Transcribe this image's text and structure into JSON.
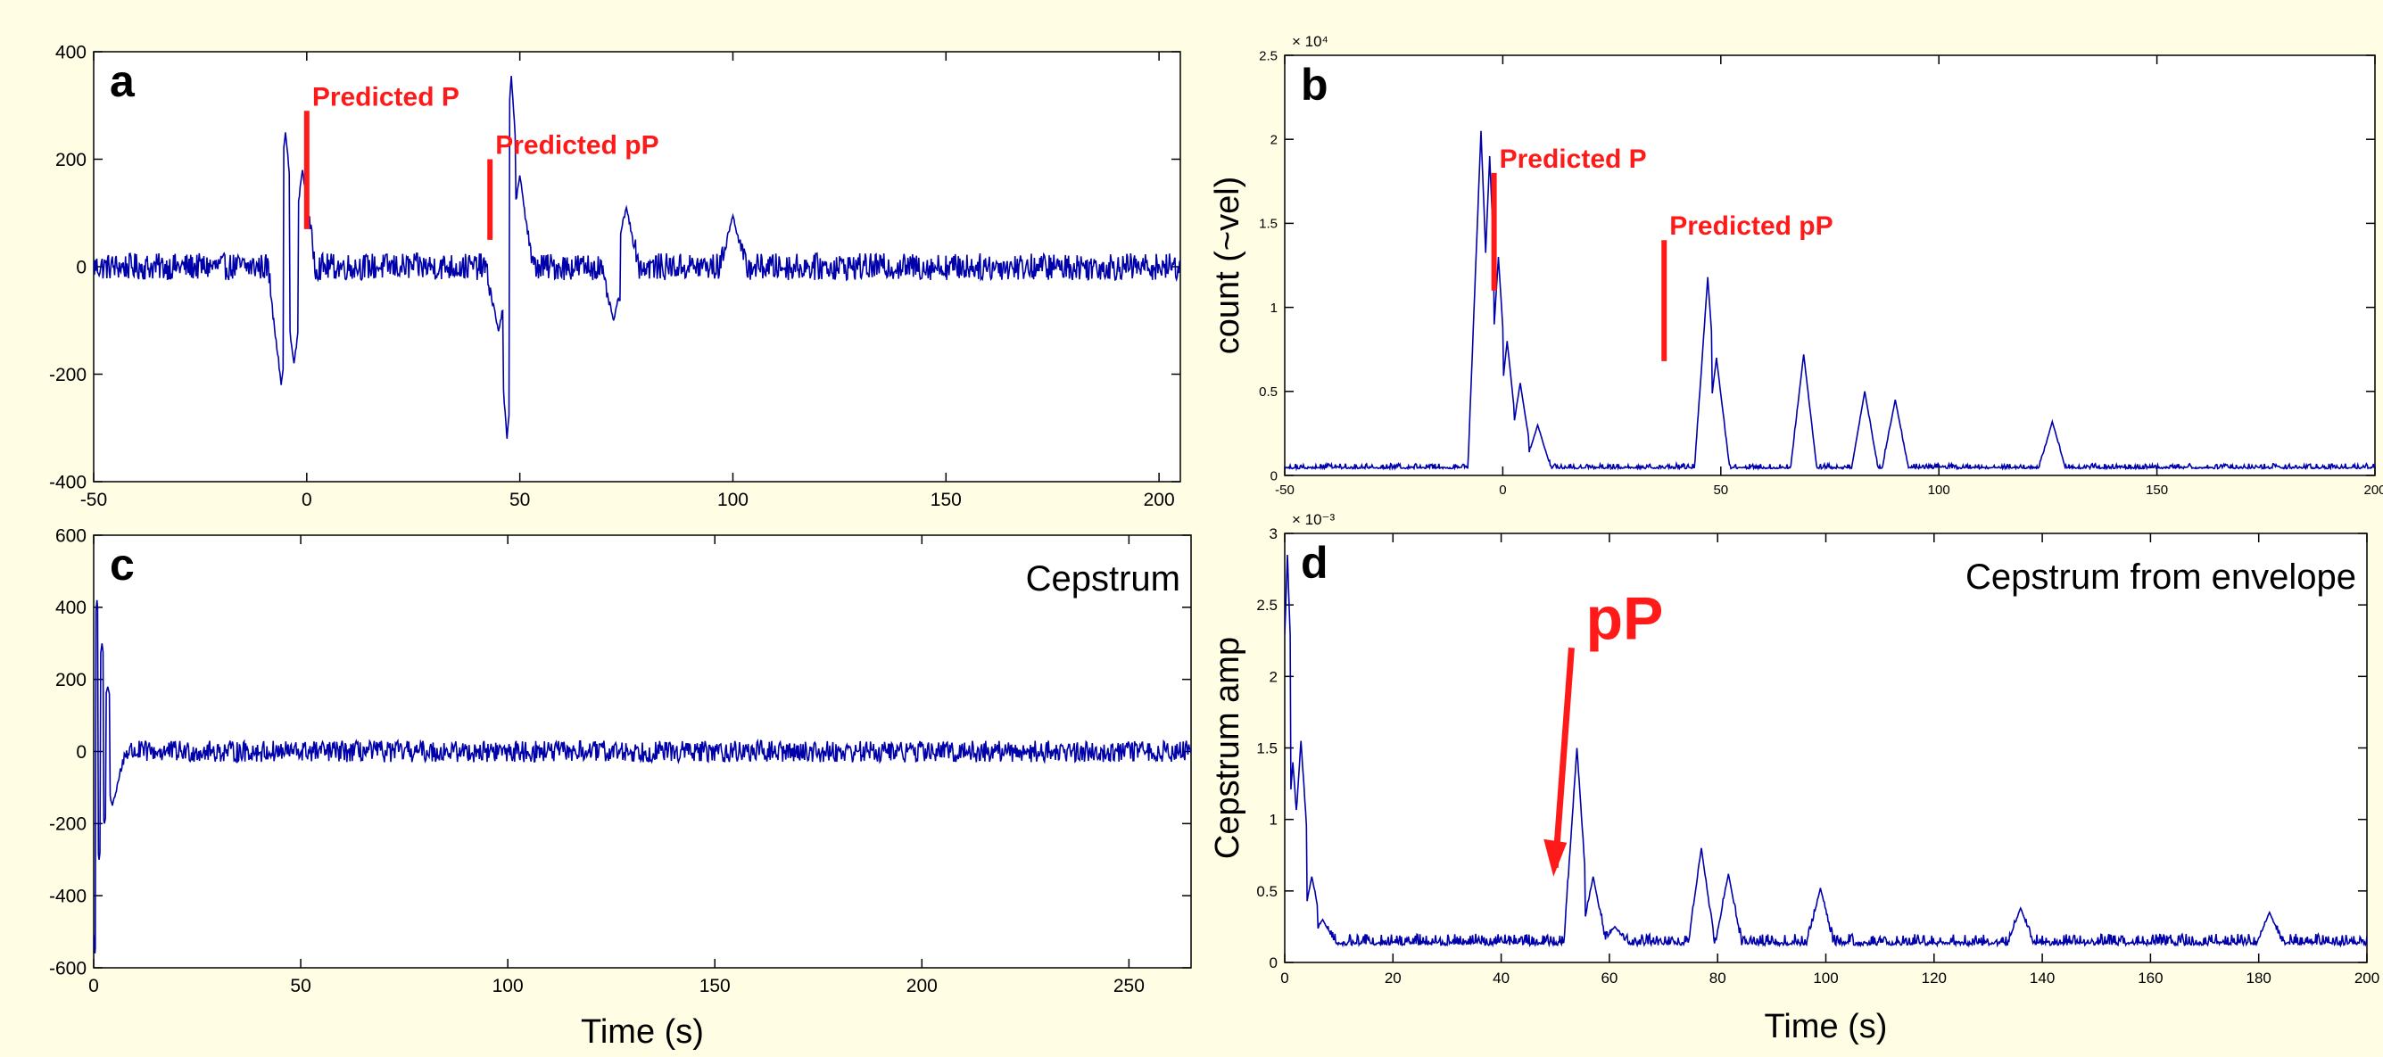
{
  "colors": {
    "background": "#fffde3",
    "trace": "#0000aa",
    "annotation": "#ff1a1a",
    "axis": "#000000"
  },
  "chart_data": [
    {
      "panel": "a",
      "type": "line",
      "title": "",
      "xlabel": "",
      "ylabel": "",
      "xlim": [
        -50,
        205
      ],
      "ylim": [
        -400,
        400
      ],
      "x_ticks": [
        -50,
        0,
        50,
        100,
        150,
        200
      ],
      "y_ticks": [
        -400,
        -200,
        0,
        200,
        400
      ],
      "x_tick_labels": [
        "-50",
        "0",
        "50",
        "100",
        "150",
        "200"
      ],
      "y_tick_labels": [
        "-400",
        "-200",
        "0",
        "200",
        "400"
      ],
      "series": [
        {
          "x_range": [
            -50,
            205
          ],
          "noise": {
            "baseline": 0,
            "amplitude": 25
          },
          "features": [
            {
              "x": -5,
              "y": 250
            },
            {
              "x": -6,
              "y": -220
            },
            {
              "x": -3,
              "y": -180
            },
            {
              "x": -1,
              "y": 180
            },
            {
              "x": 48,
              "y": 355
            },
            {
              "x": 47,
              "y": -320
            },
            {
              "x": 50,
              "y": 170
            },
            {
              "x": 45,
              "y": -120
            },
            {
              "x": 75,
              "y": 110
            },
            {
              "x": 100,
              "y": 95
            },
            {
              "x": 72,
              "y": -100
            }
          ]
        }
      ],
      "annotations": [
        {
          "label": "Predicted P",
          "marker_x": 0,
          "marker_y": [
            70,
            290
          ]
        },
        {
          "label": "Predicted pP",
          "marker_x": 43,
          "marker_y": [
            50,
            200
          ]
        }
      ],
      "panel_label": "a"
    },
    {
      "panel": "b",
      "type": "line",
      "title": "",
      "xlabel": "",
      "ylabel": "count (~vel)",
      "y_multiplier": "× 10⁴",
      "xlim": [
        -50,
        200
      ],
      "ylim": [
        0,
        2.5
      ],
      "x_ticks": [
        -50,
        0,
        50,
        100,
        150,
        200
      ],
      "y_ticks": [
        0,
        0.5,
        1,
        1.5,
        2,
        2.5
      ],
      "x_tick_labels": [
        "-50",
        "0",
        "50",
        "100",
        "150",
        "200"
      ],
      "y_tick_labels": [
        "0",
        "0.5",
        "1",
        "1.5",
        "2",
        "2.5"
      ],
      "series": [
        {
          "x_range": [
            -50,
            200
          ],
          "noise": {
            "baseline": 0.04,
            "amplitude": 0.03
          },
          "features": [
            {
              "x": -5,
              "y": 2.05
            },
            {
              "x": -3,
              "y": 1.9
            },
            {
              "x": -1,
              "y": 1.3
            },
            {
              "x": 1,
              "y": 0.8
            },
            {
              "x": 4,
              "y": 0.55
            },
            {
              "x": 8,
              "y": 0.3
            },
            {
              "x": 47,
              "y": 1.18
            },
            {
              "x": 49,
              "y": 0.7
            },
            {
              "x": 69,
              "y": 0.72
            },
            {
              "x": 83,
              "y": 0.5
            },
            {
              "x": 90,
              "y": 0.45
            },
            {
              "x": 126,
              "y": 0.32
            }
          ]
        }
      ],
      "annotations": [
        {
          "label": "Predicted P",
          "marker_x": -2,
          "marker_y": [
            1.1,
            1.8
          ]
        },
        {
          "label": "Predicted pP",
          "marker_x": 37,
          "marker_y": [
            0.68,
            1.4
          ]
        }
      ],
      "panel_label": "b"
    },
    {
      "panel": "c",
      "type": "line",
      "title": "Cepstrum",
      "xlabel": "Time (s)",
      "ylabel": "",
      "xlim": [
        0,
        265
      ],
      "ylim": [
        -600,
        600
      ],
      "x_ticks": [
        0,
        50,
        100,
        150,
        200,
        250
      ],
      "y_ticks": [
        -600,
        -400,
        -200,
        0,
        200,
        400,
        600
      ],
      "x_tick_labels": [
        "0",
        "50",
        "100",
        "150",
        "200",
        "250"
      ],
      "y_tick_labels": [
        "-600",
        "-400",
        "-200",
        "0",
        "200",
        "400",
        "600"
      ],
      "series": [
        {
          "x_range": [
            0,
            265
          ],
          "noise": {
            "baseline": 0,
            "amplitude": 30
          },
          "features": [
            {
              "x": 0.3,
              "y": -560
            },
            {
              "x": 0.8,
              "y": 420
            },
            {
              "x": 1.3,
              "y": -300
            },
            {
              "x": 2,
              "y": 300
            },
            {
              "x": 2.6,
              "y": -200
            },
            {
              "x": 3.4,
              "y": 180
            },
            {
              "x": 4.5,
              "y": -150
            }
          ]
        }
      ],
      "annotations": [],
      "panel_label": "c"
    },
    {
      "panel": "d",
      "type": "line",
      "title": "Cepstrum from envelope",
      "xlabel": "Time (s)",
      "ylabel": "Cepstrum amp",
      "y_multiplier": "× 10⁻³",
      "xlim": [
        0,
        200
      ],
      "ylim": [
        0,
        3
      ],
      "x_ticks": [
        0,
        20,
        40,
        60,
        80,
        100,
        120,
        140,
        160,
        180,
        200
      ],
      "y_ticks": [
        0,
        0.5,
        1,
        1.5,
        2,
        2.5,
        3
      ],
      "x_tick_labels": [
        "0",
        "20",
        "40",
        "60",
        "80",
        "100",
        "120",
        "140",
        "160",
        "180",
        "200"
      ],
      "y_tick_labels": [
        "0",
        "0.5",
        "1",
        "1.5",
        "2",
        "2.5",
        "3"
      ],
      "series": [
        {
          "x_range": [
            0,
            200
          ],
          "noise": {
            "baseline": 0.12,
            "amplitude": 0.08
          },
          "features": [
            {
              "x": 0.5,
              "y": 2.85
            },
            {
              "x": 1.5,
              "y": 1.4
            },
            {
              "x": 3,
              "y": 1.55
            },
            {
              "x": 5,
              "y": 0.6
            },
            {
              "x": 7,
              "y": 0.3
            },
            {
              "x": 54,
              "y": 1.5
            },
            {
              "x": 57,
              "y": 0.6
            },
            {
              "x": 61,
              "y": 0.25
            },
            {
              "x": 77,
              "y": 0.8
            },
            {
              "x": 82,
              "y": 0.62
            },
            {
              "x": 99,
              "y": 0.52
            },
            {
              "x": 136,
              "y": 0.38
            },
            {
              "x": 182,
              "y": 0.35
            }
          ]
        }
      ],
      "annotations": [
        {
          "label": "pP",
          "arrow_from": [
            53,
            2.2
          ],
          "arrow_to": [
            50,
            0.85
          ]
        }
      ],
      "panel_label": "d"
    }
  ]
}
